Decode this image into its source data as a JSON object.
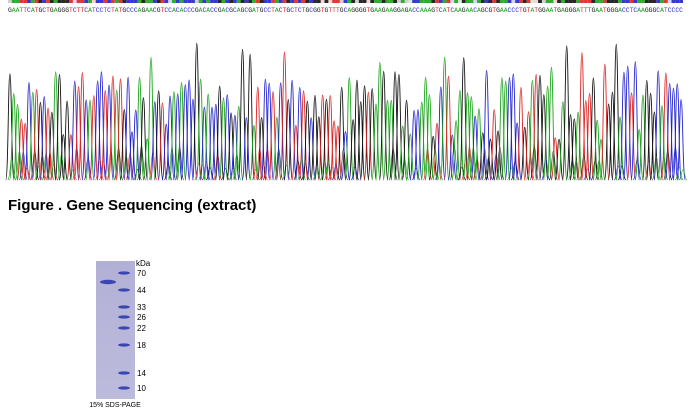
{
  "sequencing": {
    "sequence": "GAATTCATGCTGAGGGTCTTCATCCTCTATGCCCAGAACGTCCACACCCGACACCGACGCAGCGATGCCTACTGCTCTGCGGTGTTTGCAGGGGTGAAGAAGGAGACCAAAGTCATCAAGAACAGCGTGAACCCTGTATGGAATGAGGGATTTGAATGGGACCTCAAGGGCATCCCC",
    "caption": "Figure . Gene Sequencing (extract)"
  },
  "gel": {
    "unit": "kDa",
    "markers": [
      "70",
      "44",
      "33",
      "26",
      "22",
      "18",
      "14",
      "10"
    ],
    "caption": "15% SDS-PAGE"
  }
}
